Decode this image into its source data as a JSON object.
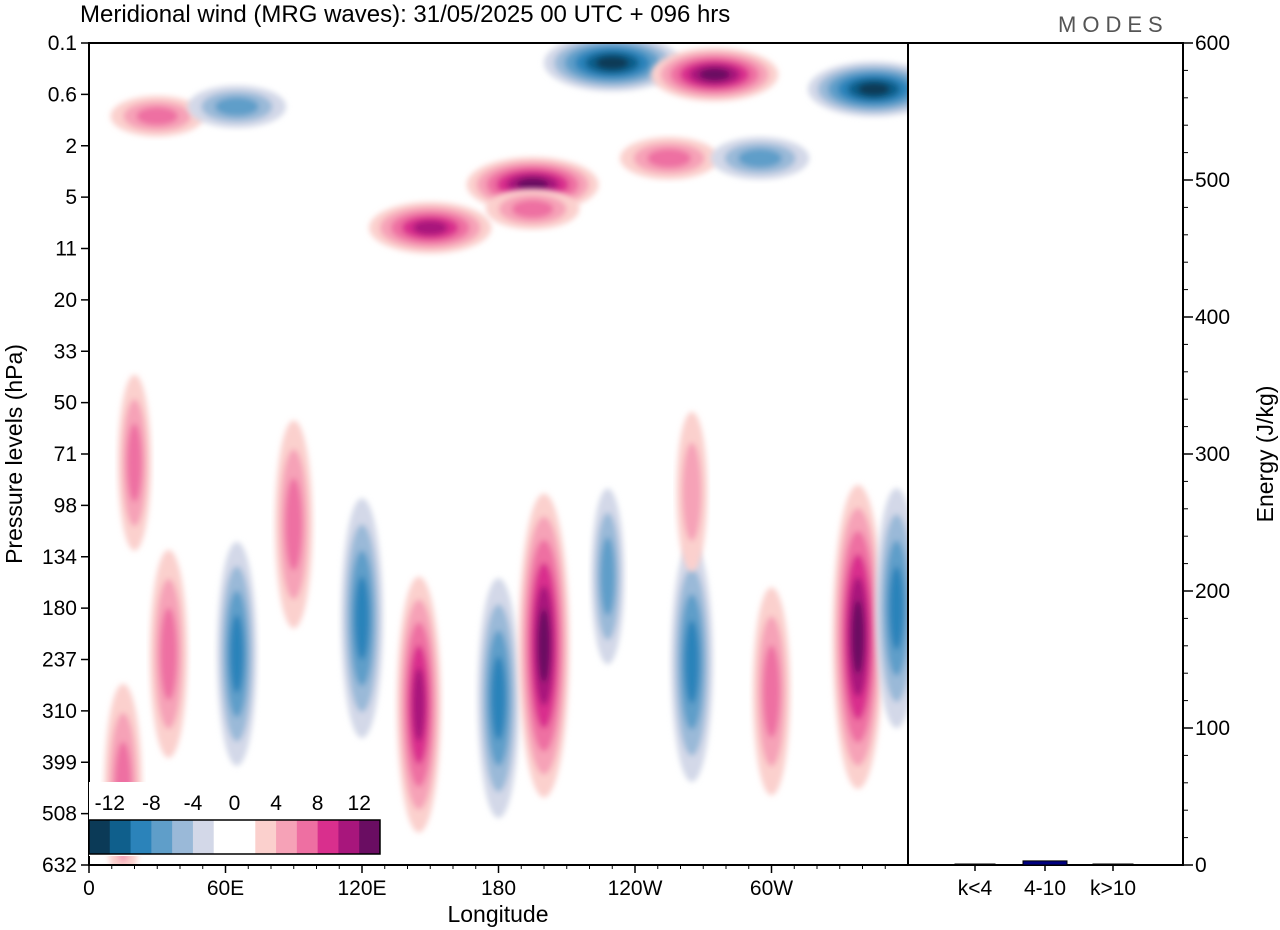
{
  "title": "Meridional wind (MRG waves):  31/05/2025  00 UTC  + 096 hrs",
  "logo": "MODES",
  "chart_data": [
    {
      "type": "heatmap",
      "xlabel": "Longitude",
      "ylabel": "Pressure levels (hPa)",
      "x_ticks": [
        "0",
        "60E",
        "120E",
        "180",
        "120W",
        "60W"
      ],
      "y_ticks": [
        "0.1",
        "0.6",
        "2",
        "5",
        "11",
        "20",
        "33",
        "50",
        "71",
        "98",
        "134",
        "180",
        "237",
        "310",
        "399",
        "508",
        "632"
      ],
      "colorbar": {
        "labels": [
          "-12",
          "-8",
          "-4",
          "0",
          "4",
          "8",
          "12"
        ],
        "colors": [
          "#0b3a57",
          "#0f5f8c",
          "#2b83ba",
          "#5f9ec9",
          "#9ab9d8",
          "#d3d8e8",
          "#ffffff",
          "#ffffff",
          "#fbd0cd",
          "#f6a2b7",
          "#ee6fa2",
          "#d92f8d",
          "#a8167c",
          "#6a0d62"
        ]
      },
      "features": [
        {
          "sign": "positive",
          "lon": 150,
          "lev": 8,
          "amp": 13
        },
        {
          "sign": "positive",
          "lon": 195,
          "lev": 4,
          "amp": 15
        },
        {
          "sign": "negative",
          "lon": 230,
          "lev": 0.2,
          "amp": 16
        },
        {
          "sign": "positive",
          "lon": 275,
          "lev": 0.3,
          "amp": 14
        },
        {
          "sign": "negative",
          "lon": 345,
          "lev": 0.5,
          "amp": 15
        },
        {
          "sign": "positive",
          "lon": 30,
          "lev": 1.0,
          "amp": 7
        },
        {
          "sign": "negative",
          "lon": 65,
          "lev": 0.8,
          "amp": 8
        },
        {
          "sign": "positive",
          "lon": 255,
          "lev": 2.5,
          "amp": 8
        },
        {
          "sign": "negative",
          "lon": 295,
          "lev": 2.5,
          "amp": 8
        },
        {
          "sign": "positive",
          "lon": 195,
          "lev": 6,
          "amp": 7
        },
        {
          "sign": "positive",
          "lon": 145,
          "lev": 300,
          "amp": 11
        },
        {
          "sign": "negative",
          "lon": 180,
          "lev": 290,
          "amp": 10
        },
        {
          "sign": "positive",
          "lon": 200,
          "lev": 220,
          "amp": 14
        },
        {
          "sign": "negative",
          "lon": 120,
          "lev": 190,
          "amp": 10
        },
        {
          "sign": "positive",
          "lon": 90,
          "lev": 110,
          "amp": 8
        },
        {
          "sign": "negative",
          "lon": 65,
          "lev": 230,
          "amp": 9
        },
        {
          "sign": "positive",
          "lon": 35,
          "lev": 230,
          "amp": 8
        },
        {
          "sign": "negative",
          "lon": 265,
          "lev": 240,
          "amp": 10
        },
        {
          "sign": "positive",
          "lon": 338,
          "lev": 210,
          "amp": 14
        },
        {
          "sign": "negative",
          "lon": 355,
          "lev": 180,
          "amp": 10
        },
        {
          "sign": "positive",
          "lon": 300,
          "lev": 280,
          "amp": 8
        },
        {
          "sign": "negative",
          "lon": 228,
          "lev": 150,
          "amp": 6
        },
        {
          "sign": "positive",
          "lon": 15,
          "lev": 450,
          "amp": 8
        },
        {
          "sign": "positive",
          "lon": 265,
          "lev": 90,
          "amp": 5
        },
        {
          "sign": "positive",
          "lon": 20,
          "lev": 75,
          "amp": 6
        }
      ]
    },
    {
      "type": "bar",
      "ylabel": "Energy (J/kg)",
      "ylim": [
        0,
        600
      ],
      "y_ticks": [
        "0",
        "100",
        "200",
        "300",
        "400",
        "500",
        "600"
      ],
      "categories": [
        "k<4",
        "4-10",
        "k>10"
      ],
      "values": [
        0.5,
        3,
        0.5
      ],
      "colors": [
        "#000080",
        "#000080",
        "#000080"
      ]
    }
  ]
}
